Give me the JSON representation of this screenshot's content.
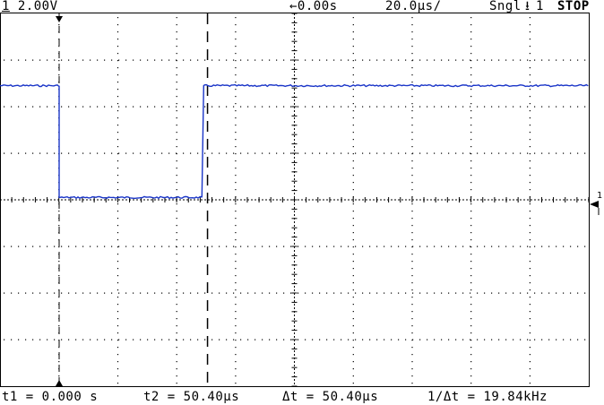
{
  "status_bar": {
    "channel_number": "1",
    "channel_scale": "2.00V",
    "delay": "←0.00s",
    "timebase": "20.0μs/",
    "mode": "Sngl",
    "trigger_channel": "1",
    "run_state": "STOP"
  },
  "cursor_readout": {
    "t1": "t1 = 0.000 s",
    "t2": "t2 = 50.40μs",
    "delta_t": "Δt = 50.40μs",
    "inverse_delta_t": "1/Δt = 19.84kHz"
  },
  "channel_marker": {
    "label": "1"
  },
  "waveform": {
    "color": "#1a35c8",
    "high_level_div": 2.45,
    "low_level_div": 0.05,
    "cursor_t1_us": 0.0,
    "cursor_t2_us": 50.4,
    "fall_time_us": 0.0,
    "rise_time_us": 48.5
  },
  "colors": {
    "trace": "#1a35c8",
    "grid": "#000000",
    "background": "#ffffff"
  }
}
